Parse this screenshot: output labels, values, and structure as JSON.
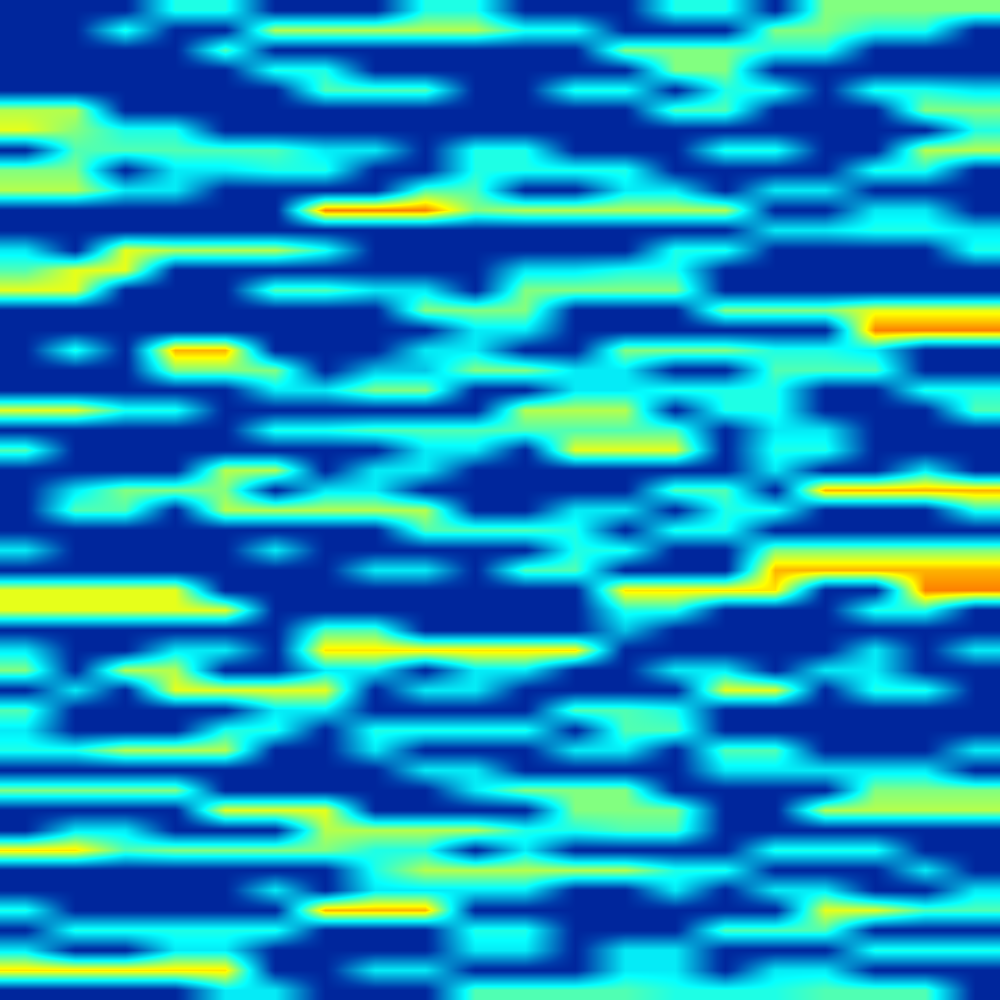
{
  "chart_data": {
    "type": "heatmap",
    "color": "jet",
    "tick_labels": false,
    "zlim": [
      0,
      1
    ],
    "cells": [
      [
        0.08,
        0.08,
        0.08,
        0.4,
        0.4,
        0.08,
        0.08,
        0.08,
        0.4,
        0.4,
        0.08,
        0.08,
        0.08,
        0.4,
        0.4,
        0.08,
        0.5,
        0.5,
        0.5,
        0.5
      ],
      [
        0.08,
        0.08,
        0.4,
        0.08,
        0.08,
        0.55,
        0.55,
        0.55,
        0.55,
        0.55,
        0.4,
        0.4,
        0.08,
        0.08,
        0.08,
        0.5,
        0.5,
        0.4,
        0.4,
        0.08
      ],
      [
        0.08,
        0.08,
        0.08,
        0.08,
        0.45,
        0.08,
        0.08,
        0.08,
        0.08,
        0.08,
        0.08,
        0.08,
        0.5,
        0.5,
        0.5,
        0.4,
        0.4,
        0.08,
        0.08,
        0.08
      ],
      [
        0.08,
        0.08,
        0.08,
        0.08,
        0.08,
        0.4,
        0.4,
        0.08,
        0.08,
        0.08,
        0.08,
        0.08,
        0.08,
        0.5,
        0.5,
        0.08,
        0.08,
        0.08,
        0.08,
        0.08
      ],
      [
        0.08,
        0.08,
        0.08,
        0.08,
        0.08,
        0.08,
        0.45,
        0.45,
        0.45,
        0.08,
        0.08,
        0.4,
        0.4,
        0.08,
        0.4,
        0.4,
        0.08,
        0.4,
        0.4,
        0.35
      ],
      [
        0.55,
        0.55,
        0.08,
        0.08,
        0.08,
        0.08,
        0.08,
        0.08,
        0.08,
        0.08,
        0.08,
        0.08,
        0.08,
        0.45,
        0.45,
        0.08,
        0.08,
        0.08,
        0.5,
        0.5
      ],
      [
        0.6,
        0.5,
        0.4,
        0.4,
        0.08,
        0.08,
        0.08,
        0.08,
        0.08,
        0.08,
        0.08,
        0.08,
        0.08,
        0.08,
        0.08,
        0.08,
        0.08,
        0.08,
        0.08,
        0.4
      ],
      [
        0.08,
        0.45,
        0.45,
        0.45,
        0.45,
        0.45,
        0.35,
        0.35,
        0.08,
        0.4,
        0.4,
        0.08,
        0.08,
        0.08,
        0.4,
        0.4,
        0.08,
        0.08,
        0.55,
        0.55
      ],
      [
        0.5,
        0.5,
        0.08,
        0.35,
        0.35,
        0.4,
        0.4,
        0.08,
        0.08,
        0.4,
        0.4,
        0.4,
        0.4,
        0.08,
        0.08,
        0.08,
        0.08,
        0.4,
        0.4,
        0.08
      ],
      [
        0.55,
        0.55,
        0.35,
        0.35,
        0.08,
        0.08,
        0.08,
        0.08,
        0.45,
        0.45,
        0.08,
        0.08,
        0.35,
        0.35,
        0.08,
        0.35,
        0.35,
        0.08,
        0.08,
        0.08
      ],
      [
        0.08,
        0.08,
        0.08,
        0.08,
        0.08,
        0.08,
        0.75,
        0.75,
        0.75,
        0.5,
        0.55,
        0.55,
        0.55,
        0.55,
        0.55,
        0.08,
        0.08,
        0.35,
        0.35,
        0.08
      ],
      [
        0.08,
        0.08,
        0.08,
        0.08,
        0.08,
        0.08,
        0.08,
        0.08,
        0.08,
        0.08,
        0.08,
        0.08,
        0.08,
        0.08,
        0.08,
        0.35,
        0.35,
        0.4,
        0.4,
        0.35
      ],
      [
        0.35,
        0.08,
        0.6,
        0.55,
        0.55,
        0.55,
        0.4,
        0.08,
        0.08,
        0.08,
        0.08,
        0.08,
        0.08,
        0.4,
        0.4,
        0.08,
        0.08,
        0.08,
        0.08,
        0.4
      ],
      [
        0.45,
        0.6,
        0.6,
        0.08,
        0.08,
        0.08,
        0.08,
        0.08,
        0.08,
        0.08,
        0.35,
        0.35,
        0.4,
        0.4,
        0.08,
        0.08,
        0.08,
        0.08,
        0.08,
        0.08
      ],
      [
        0.6,
        0.6,
        0.08,
        0.08,
        0.08,
        0.45,
        0.45,
        0.35,
        0.35,
        0.08,
        0.5,
        0.5,
        0.5,
        0.5,
        0.08,
        0.08,
        0.08,
        0.08,
        0.08,
        0.08
      ],
      [
        0.08,
        0.08,
        0.08,
        0.08,
        0.08,
        0.08,
        0.08,
        0.08,
        0.5,
        0.5,
        0.5,
        0.08,
        0.08,
        0.08,
        0.5,
        0.5,
        0.5,
        0.6,
        0.6,
        0.6
      ],
      [
        0.08,
        0.08,
        0.08,
        0.08,
        0.08,
        0.08,
        0.08,
        0.08,
        0.08,
        0.35,
        0.35,
        0.08,
        0.08,
        0.08,
        0.08,
        0.08,
        0.08,
        0.75,
        0.75,
        0.75
      ],
      [
        0.08,
        0.4,
        0.08,
        0.7,
        0.7,
        0.08,
        0.08,
        0.08,
        0.35,
        0.35,
        0.08,
        0.08,
        0.5,
        0.5,
        0.5,
        0.4,
        0.4,
        0.35,
        0.08,
        0.08
      ],
      [
        0.08,
        0.08,
        0.08,
        0.5,
        0.5,
        0.5,
        0.08,
        0.3,
        0.3,
        0.5,
        0.5,
        0.35,
        0.35,
        0.08,
        0.08,
        0.45,
        0.45,
        0.45,
        0.08,
        0.08
      ],
      [
        0.08,
        0.08,
        0.08,
        0.08,
        0.08,
        0.35,
        0.35,
        0.5,
        0.5,
        0.08,
        0.08,
        0.35,
        0.35,
        0.4,
        0.4,
        0.4,
        0.08,
        0.08,
        0.4,
        0.4
      ],
      [
        0.6,
        0.6,
        0.4,
        0.4,
        0.08,
        0.08,
        0.08,
        0.08,
        0.08,
        0.08,
        0.55,
        0.55,
        0.55,
        0.08,
        0.4,
        0.4,
        0.08,
        0.08,
        0.08,
        0.45
      ],
      [
        0.08,
        0.08,
        0.08,
        0.08,
        0.08,
        0.4,
        0.4,
        0.45,
        0.45,
        0.45,
        0.45,
        0.45,
        0.45,
        0.45,
        0.08,
        0.35,
        0.35,
        0.08,
        0.08,
        0.08
      ],
      [
        0.45,
        0.08,
        0.08,
        0.08,
        0.08,
        0.08,
        0.08,
        0.08,
        0.35,
        0.35,
        0.08,
        0.6,
        0.6,
        0.6,
        0.08,
        0.4,
        0.4,
        0.08,
        0.08,
        0.08
      ],
      [
        0.08,
        0.08,
        0.08,
        0.08,
        0.55,
        0.55,
        0.08,
        0.35,
        0.35,
        0.08,
        0.08,
        0.08,
        0.08,
        0.08,
        0.08,
        0.35,
        0.08,
        0.08,
        0.35,
        0.08
      ],
      [
        0.08,
        0.35,
        0.5,
        0.5,
        0.5,
        0.08,
        0.35,
        0.35,
        0.08,
        0.08,
        0.08,
        0.08,
        0.08,
        0.45,
        0.45,
        0.08,
        0.7,
        0.7,
        0.7,
        0.7
      ],
      [
        0.08,
        0.45,
        0.45,
        0.08,
        0.55,
        0.55,
        0.55,
        0.55,
        0.55,
        0.08,
        0.08,
        0.35,
        0.35,
        0.08,
        0.4,
        0.4,
        0.08,
        0.08,
        0.08,
        0.4
      ],
      [
        0.08,
        0.08,
        0.08,
        0.08,
        0.08,
        0.08,
        0.08,
        0.08,
        0.45,
        0.45,
        0.45,
        0.4,
        0.08,
        0.4,
        0.4,
        0.08,
        0.08,
        0.08,
        0.08,
        0.08
      ],
      [
        0.35,
        0.08,
        0.08,
        0.08,
        0.08,
        0.35,
        0.08,
        0.08,
        0.08,
        0.08,
        0.08,
        0.4,
        0.4,
        0.08,
        0.08,
        0.5,
        0.5,
        0.5,
        0.5,
        0.5
      ],
      [
        0.08,
        0.08,
        0.08,
        0.08,
        0.08,
        0.08,
        0.08,
        0.35,
        0.35,
        0.08,
        0.45,
        0.45,
        0.08,
        0.08,
        0.08,
        0.7,
        0.7,
        0.7,
        0.7,
        0.7
      ],
      [
        0.6,
        0.6,
        0.6,
        0.6,
        0.08,
        0.08,
        0.08,
        0.08,
        0.08,
        0.08,
        0.08,
        0.08,
        0.65,
        0.65,
        0.65,
        0.65,
        0.08,
        0.08,
        0.75,
        0.75
      ],
      [
        0.6,
        0.6,
        0.6,
        0.6,
        0.6,
        0.08,
        0.08,
        0.08,
        0.08,
        0.08,
        0.08,
        0.08,
        0.4,
        0.4,
        0.08,
        0.08,
        0.08,
        0.4,
        0.4,
        0.08
      ],
      [
        0.08,
        0.08,
        0.08,
        0.08,
        0.08,
        0.08,
        0.45,
        0.45,
        0.08,
        0.08,
        0.08,
        0.08,
        0.3,
        0.08,
        0.08,
        0.08,
        0.08,
        0.08,
        0.08,
        0.08
      ],
      [
        0.35,
        0.08,
        0.08,
        0.35,
        0.35,
        0.08,
        0.65,
        0.65,
        0.65,
        0.65,
        0.65,
        0.65,
        0.08,
        0.08,
        0.08,
        0.08,
        0.08,
        0.35,
        0.08,
        0.35
      ],
      [
        0.5,
        0.08,
        0.55,
        0.55,
        0.08,
        0.08,
        0.35,
        0.35,
        0.08,
        0.35,
        0.35,
        0.08,
        0.08,
        0.35,
        0.35,
        0.08,
        0.35,
        0.35,
        0.08,
        0.08
      ],
      [
        0.08,
        0.35,
        0.08,
        0.6,
        0.6,
        0.6,
        0.6,
        0.08,
        0.35,
        0.35,
        0.08,
        0.08,
        0.08,
        0.08,
        0.6,
        0.6,
        0.08,
        0.4,
        0.4,
        0.08
      ],
      [
        0.45,
        0.08,
        0.08,
        0.08,
        0.08,
        0.35,
        0.35,
        0.08,
        0.08,
        0.08,
        0.08,
        0.45,
        0.45,
        0.4,
        0.08,
        0.08,
        0.08,
        0.08,
        0.08,
        0.08
      ],
      [
        0.35,
        0.08,
        0.08,
        0.08,
        0.4,
        0.4,
        0.08,
        0.4,
        0.4,
        0.4,
        0.4,
        0.08,
        0.45,
        0.45,
        0.08,
        0.08,
        0.08,
        0.08,
        0.08,
        0.08
      ],
      [
        0.4,
        0.4,
        0.55,
        0.55,
        0.55,
        0.08,
        0.08,
        0.35,
        0.08,
        0.08,
        0.08,
        0.35,
        0.35,
        0.08,
        0.45,
        0.45,
        0.08,
        0.08,
        0.08,
        0.35
      ],
      [
        0.08,
        0.08,
        0.08,
        0.08,
        0.08,
        0.08,
        0.08,
        0.08,
        0.35,
        0.35,
        0.08,
        0.08,
        0.08,
        0.08,
        0.35,
        0.35,
        0.35,
        0.35,
        0.35,
        0.08
      ],
      [
        0.5,
        0.5,
        0.5,
        0.5,
        0.08,
        0.08,
        0.08,
        0.08,
        0.08,
        0.35,
        0.5,
        0.5,
        0.5,
        0.08,
        0.08,
        0.08,
        0.08,
        0.5,
        0.5,
        0.5
      ],
      [
        0.08,
        0.08,
        0.08,
        0.08,
        0.6,
        0.6,
        0.6,
        0.08,
        0.08,
        0.08,
        0.08,
        0.5,
        0.5,
        0.5,
        0.08,
        0.08,
        0.55,
        0.55,
        0.55,
        0.55
      ],
      [
        0.08,
        0.35,
        0.35,
        0.08,
        0.08,
        0.08,
        0.55,
        0.55,
        0.55,
        0.55,
        0.4,
        0.4,
        0.45,
        0.45,
        0.08,
        0.08,
        0.08,
        0.08,
        0.08,
        0.08
      ],
      [
        0.65,
        0.65,
        0.45,
        0.5,
        0.5,
        0.5,
        0.5,
        0.4,
        0.4,
        0.08,
        0.35,
        0.08,
        0.08,
        0.08,
        0.08,
        0.4,
        0.4,
        0.4,
        0.08,
        0.08
      ],
      [
        0.08,
        0.08,
        0.08,
        0.08,
        0.08,
        0.08,
        0.08,
        0.4,
        0.55,
        0.55,
        0.55,
        0.55,
        0.55,
        0.4,
        0.4,
        0.08,
        0.08,
        0.08,
        0.35,
        0.08
      ],
      [
        0.08,
        0.08,
        0.08,
        0.08,
        0.08,
        0.35,
        0.08,
        0.35,
        0.35,
        0.35,
        0.35,
        0.08,
        0.08,
        0.35,
        0.08,
        0.35,
        0.35,
        0.08,
        0.08,
        0.35
      ],
      [
        0.4,
        0.08,
        0.08,
        0.08,
        0.08,
        0.08,
        0.7,
        0.7,
        0.7,
        0.08,
        0.08,
        0.08,
        0.08,
        0.08,
        0.08,
        0.08,
        0.6,
        0.6,
        0.45,
        0.45
      ],
      [
        0.08,
        0.4,
        0.4,
        0.4,
        0.4,
        0.4,
        0.08,
        0.08,
        0.08,
        0.4,
        0.4,
        0.08,
        0.08,
        0.08,
        0.45,
        0.45,
        0.45,
        0.08,
        0.08,
        0.08
      ],
      [
        0.35,
        0.08,
        0.08,
        0.35,
        0.35,
        0.08,
        0.08,
        0.08,
        0.08,
        0.35,
        0.35,
        0.08,
        0.35,
        0.35,
        0.08,
        0.08,
        0.08,
        0.4,
        0.4,
        0.4
      ],
      [
        0.65,
        0.65,
        0.65,
        0.65,
        0.65,
        0.08,
        0.08,
        0.35,
        0.35,
        0.08,
        0.08,
        0.08,
        0.35,
        0.35,
        0.08,
        0.35,
        0.35,
        0.08,
        0.08,
        0.08
      ],
      [
        0.08,
        0.08,
        0.08,
        0.08,
        0.35,
        0.35,
        0.08,
        0.08,
        0.08,
        0.45,
        0.45,
        0.45,
        0.45,
        0.4,
        0.4,
        0.4,
        0.45,
        0.45,
        0.45,
        0.08
      ]
    ]
  }
}
